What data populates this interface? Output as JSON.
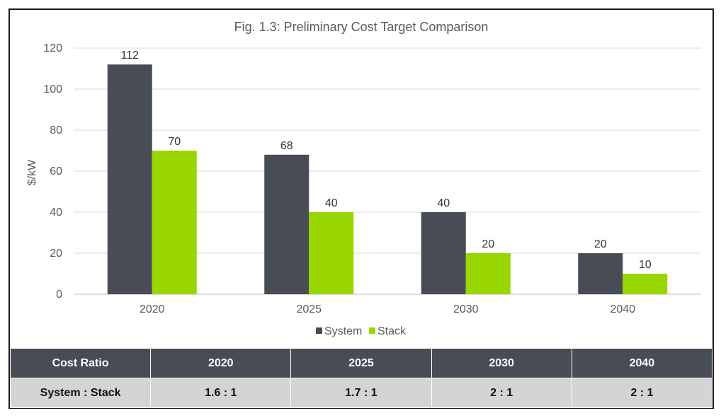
{
  "chart_data": {
    "type": "bar",
    "title": "Fig. 1.3: Preliminary Cost Target Comparison",
    "xlabel": "",
    "ylabel": "$/kW",
    "categories": [
      "2020",
      "2025",
      "2030",
      "2040"
    ],
    "series": [
      {
        "name": "System",
        "values": [
          112,
          68,
          40,
          20
        ],
        "color": "#474c55"
      },
      {
        "name": "Stack",
        "values": [
          70,
          40,
          20,
          10
        ],
        "color": "#99d600"
      }
    ],
    "ylim": [
      0,
      120
    ],
    "yticks": [
      0,
      20,
      40,
      60,
      80,
      100,
      120
    ],
    "grid": true,
    "legend": "bottom",
    "data_labels": true
  },
  "table": {
    "header": [
      "Cost Ratio",
      "2020",
      "2025",
      "2030",
      "2040"
    ],
    "row": [
      "System : Stack",
      "1.6 : 1",
      "1.7 : 1",
      "2 : 1",
      "2 : 1"
    ]
  }
}
